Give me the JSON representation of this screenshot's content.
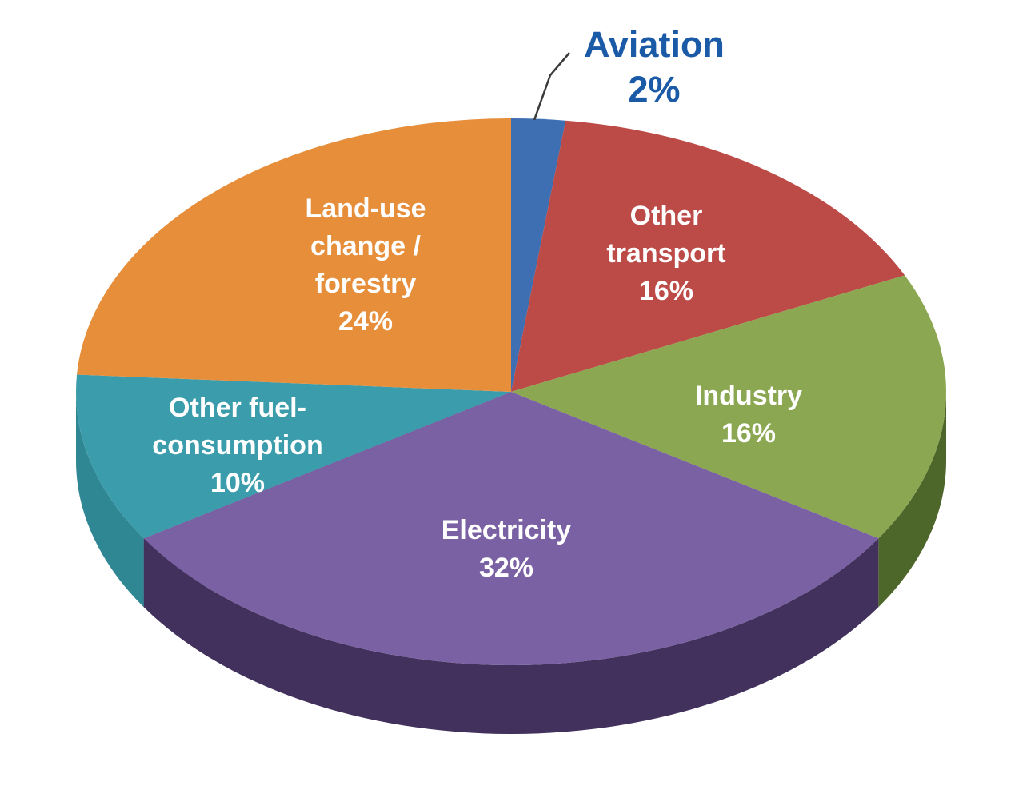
{
  "page": {
    "background": "#ffffff"
  },
  "chart_data": {
    "type": "pie",
    "style": "3d",
    "title": "",
    "unit": "%",
    "start_angle_deg": 0,
    "direction": "clockwise",
    "slices": [
      {
        "id": "aviation",
        "label": "Aviation",
        "value": 2,
        "display": "2%",
        "color": "#3f6fb3",
        "label_color": "#1b5aa6",
        "lines": [
          "Aviation"
        ],
        "callout": true
      },
      {
        "id": "other-transport",
        "label": "Other transport",
        "value": 16,
        "display": "16%",
        "color": "#bc4b47",
        "label_color": "#ffffff",
        "lines": [
          "Other",
          "transport"
        ]
      },
      {
        "id": "industry",
        "label": "Industry",
        "value": 16,
        "display": "16%",
        "color": "#8ca751",
        "side_color": "#4d6629",
        "label_color": "#ffffff",
        "lines": [
          "Industry"
        ]
      },
      {
        "id": "electricity",
        "label": "Electricity",
        "value": 32,
        "display": "32%",
        "color": "#7a61a3",
        "side_color": "#42315c",
        "end_face_color": "#5a4374",
        "label_color": "#ffffff",
        "lines": [
          "Electricity"
        ]
      },
      {
        "id": "other-fuel-consumption",
        "label": "Other fuel-consumption",
        "value": 10,
        "display": "10%",
        "color": "#3b9dab",
        "side_color": "#2f8794",
        "label_color": "#ffffff",
        "lines": [
          "Other fuel-",
          "consumption"
        ]
      },
      {
        "id": "land-use-change-forestry",
        "label": "Land-use change / forestry",
        "value": 24,
        "display": "24%",
        "color": "#e78e3b",
        "label_color": "#ffffff",
        "lines": [
          "Land-use",
          "change /",
          "forestry"
        ]
      }
    ],
    "callout": {
      "for": "Aviation",
      "line_color": "#3a3a3a"
    }
  }
}
